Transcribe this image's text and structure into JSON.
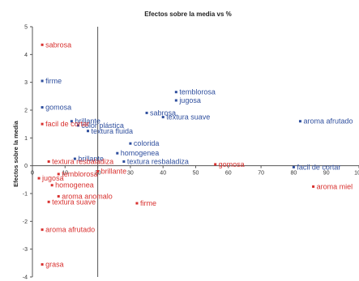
{
  "chart_data": {
    "type": "scatter",
    "title": "Efectos sobre la media vs %",
    "xlabel": "",
    "ylabel": "Efectos sobre la media",
    "xlim": [
      0,
      100
    ],
    "ylim": [
      -4,
      5
    ],
    "x_ticks": [
      "0",
      "10",
      "20",
      "30",
      "40",
      "50",
      "60",
      "70",
      "80",
      "90",
      "100"
    ],
    "y_ticks": [
      "5",
      "4",
      "3",
      "2",
      "1",
      "0",
      "-1",
      "-2",
      "-3",
      "-4"
    ],
    "vertical_reference_x": 20,
    "grid": false,
    "legend": "none",
    "colors": {
      "blue": "#2f4f9e",
      "red": "#d8312f"
    },
    "series": [
      {
        "color": "blue",
        "points": [
          {
            "label": "firme",
            "x": 3,
            "y": 3.05
          },
          {
            "label": "gomosa",
            "x": 3,
            "y": 2.1
          },
          {
            "label": "brillante",
            "x": 12,
            "y": 1.6
          },
          {
            "label": "color plástica",
            "x": 14,
            "y": 1.45
          },
          {
            "label": "textura fluida",
            "x": 17,
            "y": 1.25
          },
          {
            "label": "sabrosa",
            "x": 35,
            "y": 1.9
          },
          {
            "label": "temblorosa",
            "x": 44,
            "y": 2.65
          },
          {
            "label": "jugosa",
            "x": 44,
            "y": 2.35
          },
          {
            "label": "textura suave",
            "x": 40,
            "y": 1.75
          },
          {
            "label": "colorida",
            "x": 30,
            "y": 0.8
          },
          {
            "label": "homogenea",
            "x": 26,
            "y": 0.45
          },
          {
            "label": "textura resbaladiza",
            "x": 28,
            "y": 0.15
          },
          {
            "label": "brillante",
            "x": 13,
            "y": 0.25
          },
          {
            "label": "aroma afrutado",
            "x": 82,
            "y": 1.6
          },
          {
            "label": "facil de cortar",
            "x": 80,
            "y": -0.05
          }
        ]
      },
      {
        "color": "red",
        "points": [
          {
            "label": "sabrosa",
            "x": 3,
            "y": 4.35
          },
          {
            "label": "facil de cortar",
            "x": 3,
            "y": 1.5
          },
          {
            "label": "textura resbaladiza",
            "x": 5,
            "y": 0.15
          },
          {
            "label": "jugosa",
            "x": 2,
            "y": -0.45
          },
          {
            "label": "temblorosa",
            "x": 8,
            "y": -0.3
          },
          {
            "label": "brillante",
            "x": 20,
            "y": -0.2
          },
          {
            "label": "homogenea",
            "x": 6,
            "y": -0.7
          },
          {
            "label": "aroma anomalo",
            "x": 8,
            "y": -1.1
          },
          {
            "label": "textura suave",
            "x": 5,
            "y": -1.3
          },
          {
            "label": "firme",
            "x": 32,
            "y": -1.35
          },
          {
            "label": "aroma afrutado",
            "x": 3,
            "y": -2.3
          },
          {
            "label": "grasa",
            "x": 3,
            "y": -3.55
          },
          {
            "label": "gomosa",
            "x": 56,
            "y": 0.05
          },
          {
            "label": "aroma miel",
            "x": 86,
            "y": -0.75
          }
        ]
      }
    ]
  }
}
